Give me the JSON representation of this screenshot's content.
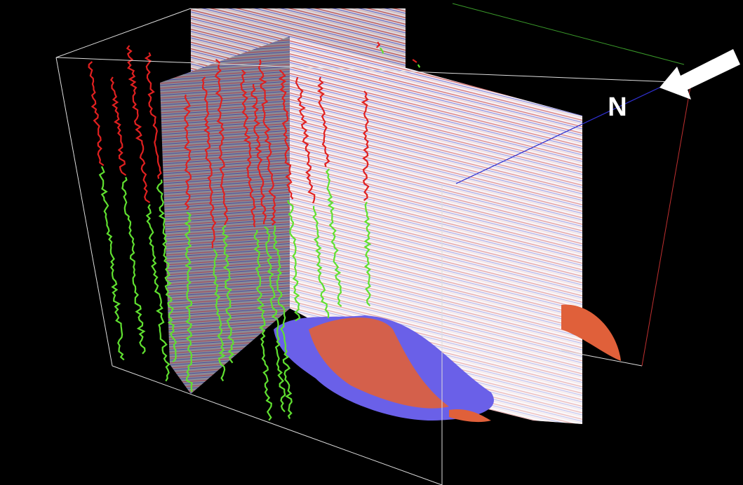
{
  "labels": {
    "north": "N"
  }
}
